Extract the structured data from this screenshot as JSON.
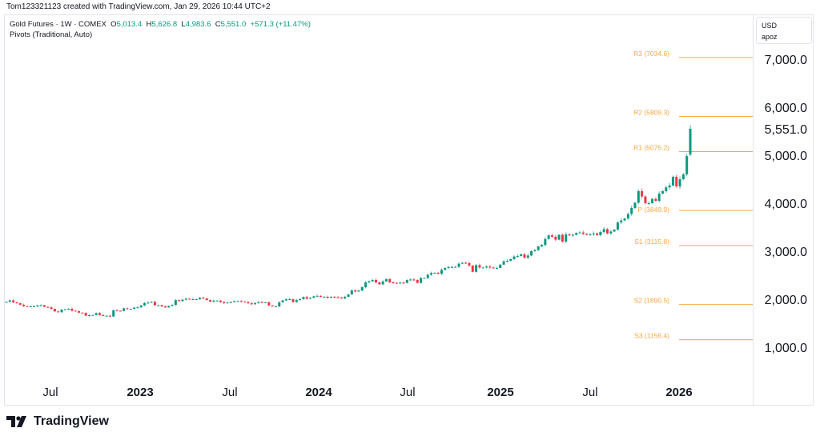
{
  "caption": "Tom123321123 created with TradingView.com, Jan 29, 2026 10:44 UTC+2",
  "legend": {
    "symbol": "Gold Futures · 1W · COMEX",
    "open_label": "O",
    "open": "5,013.4",
    "high_label": "H",
    "high": "5,626.8",
    "low_label": "L",
    "low": "4,983.6",
    "close_label": "C",
    "close": "5,551.0",
    "change": "+571.3 (+11.47%)",
    "indicator": "Pivots (Traditional, Auto)"
  },
  "currency_box": {
    "currency": "USD",
    "scale": "apoz"
  },
  "logo": {
    "text": "TradingView"
  },
  "colors": {
    "up": "#089981",
    "down": "#f23645",
    "pivot": "#f7a746",
    "last_price": "#089981"
  },
  "chart_data": {
    "type": "candlestick",
    "interval": "1W",
    "y_ticks": [
      "1,000.0",
      "2,000.0",
      "3,000.0",
      "4,000.0",
      "5,000.0",
      "6,000.0",
      "7,000.0"
    ],
    "y_tick_values": [
      1000,
      2000,
      3000,
      4000,
      5000,
      6000,
      7000
    ],
    "ylim": [
      0,
      7500
    ],
    "x_ticks": [
      {
        "label": "Jul",
        "bold": false
      },
      {
        "label": "2023",
        "bold": true
      },
      {
        "label": "Jul",
        "bold": false
      },
      {
        "label": "2024",
        "bold": true
      },
      {
        "label": "Jul",
        "bold": false
      },
      {
        "label": "2025",
        "bold": true
      },
      {
        "label": "Jul",
        "bold": false
      },
      {
        "label": "2026",
        "bold": true
      }
    ],
    "last_price_label": "5,551.0",
    "first_open": 1930,
    "weekly_close": [
      1945,
      1975,
      1935,
      1915,
      1885,
      1855,
      1845,
      1850,
      1850,
      1870,
      1875,
      1840,
      1830,
      1800,
      1745,
      1730,
      1780,
      1790,
      1800,
      1760,
      1750,
      1720,
      1715,
      1655,
      1665,
      1670,
      1710,
      1670,
      1650,
      1655,
      1640,
      1770,
      1760,
      1755,
      1810,
      1800,
      1800,
      1825,
      1830,
      1870,
      1920,
      1930,
      1945,
      1875,
      1875,
      1850,
      1830,
      1860,
      1880,
      1980,
      1960,
      1990,
      2010,
      2000,
      2000,
      2000,
      2030,
      2015,
      1980,
      1950,
      1970,
      1970,
      1940,
      1920,
      1930,
      1940,
      1960,
      1960,
      1950,
      1940,
      1915,
      1895,
      1920,
      1940,
      1935,
      1935,
      1870,
      1850,
      1850,
      1935,
      1975,
      2000,
      2000,
      1940,
      1985,
      2000,
      2045,
      2010,
      2030,
      2060,
      2070,
      2050,
      2050,
      2030,
      2050,
      2040,
      2035,
      2015,
      2050,
      2100,
      2185,
      2160,
      2180,
      2250,
      2350,
      2375,
      2400,
      2350,
      2310,
      2370,
      2420,
      2350,
      2340,
      2330,
      2345,
      2340,
      2400,
      2410,
      2400,
      2340,
      2440,
      2440,
      2510,
      2545,
      2550,
      2530,
      2610,
      2650,
      2670,
      2670,
      2675,
      2740,
      2760,
      2750,
      2700,
      2570,
      2710,
      2660,
      2660,
      2680,
      2660,
      2645,
      2650,
      2720,
      2790,
      2800,
      2835,
      2890,
      2900,
      2935,
      2865,
      2910,
      3000,
      3020,
      3100,
      3130,
      3255,
      3330,
      3300,
      3240,
      3340,
      3200,
      3350,
      3330,
      3340,
      3380,
      3390,
      3360,
      3340,
      3350,
      3370,
      3335,
      3400,
      3460,
      3370,
      3410,
      3450,
      3600,
      3640,
      3680,
      3775,
      3900,
      4010,
      4250,
      4140,
      4000,
      4000,
      4090,
      4050,
      4200,
      4250,
      4330,
      4370,
      4550,
      4350,
      4500,
      4600,
      4979.7,
      5551.0
    ],
    "last_candle": {
      "open": 5013.4,
      "high": 5626.8,
      "low": 4983.6,
      "close": 5551.0
    },
    "pivots": [
      {
        "name": "R3",
        "label": "R3 (7034.6)",
        "value": 7034.6
      },
      {
        "name": "R2",
        "label": "R2 (5809.3)",
        "value": 5809.3
      },
      {
        "name": "R1",
        "label": "R1 (5075.2)",
        "value": 5075.2
      },
      {
        "name": "P",
        "label": "P (3849.9)",
        "value": 3849.9
      },
      {
        "name": "S1",
        "label": "S1 (3115.8)",
        "value": 3115.8
      },
      {
        "name": "S2",
        "label": "S2 (1890.5)",
        "value": 1890.5
      },
      {
        "name": "S3",
        "label": "S3 (1156.4)",
        "value": 1156.4
      }
    ]
  }
}
